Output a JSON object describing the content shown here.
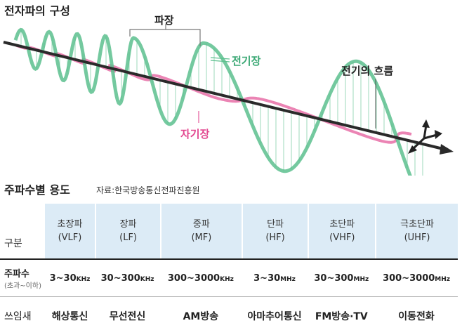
{
  "title": "전자파의 구성",
  "diagram": {
    "wavelength_label": "파장",
    "electric_field_label": "전기장",
    "magnetic_field_label": "자기장",
    "current_label": "전기의 흐름",
    "colors": {
      "electric": "#5cc08e",
      "magnetic": "#e45b9b",
      "axis": "#222222"
    }
  },
  "usage": {
    "title": "주파수별 용도",
    "source": "자료:한국방송통신전파진흥원",
    "header_label": "구분",
    "freq_label": "주파수",
    "freq_sublabel": "(초과~이하)",
    "use_label": "쓰임새",
    "bands": [
      {
        "name": "초장파",
        "code": "(VLF)",
        "range": "3~30",
        "unit": "KHz",
        "use": "해상통신"
      },
      {
        "name": "장파",
        "code": "(LF)",
        "range": "30~300",
        "unit": "KHz",
        "use": "무선전신"
      },
      {
        "name": "중파",
        "code": "(MF)",
        "range": "300~3000",
        "unit": "KHz",
        "use": "AM방송"
      },
      {
        "name": "단파",
        "code": "(HF)",
        "range": "3~30",
        "unit": "MHz",
        "use": "아마추어통신"
      },
      {
        "name": "초단파",
        "code": "(VHF)",
        "range": "30~300",
        "unit": "MHz",
        "use": "FM방송·TV"
      },
      {
        "name": "극초단파",
        "code": "(UHF)",
        "range": "300~3000",
        "unit": "MHz",
        "use": "이동전화"
      }
    ]
  }
}
